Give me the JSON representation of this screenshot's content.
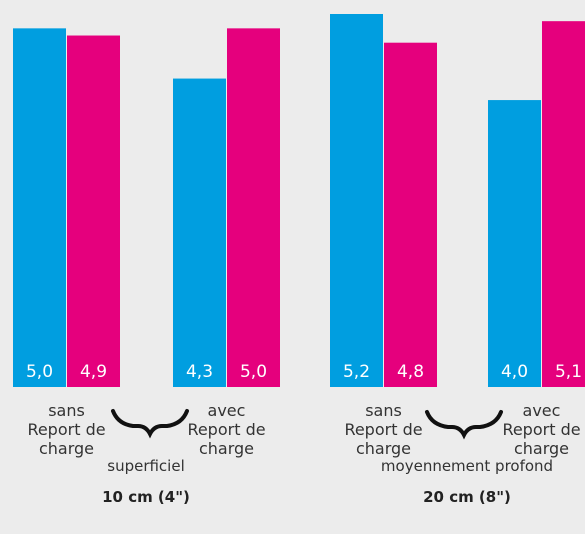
{
  "chart_data": {
    "type": "bar",
    "colors": {
      "sans": "#009ee0",
      "avec": "#e5007d"
    },
    "ylim": [
      0,
      5.2
    ],
    "clusters": [
      {
        "key": "c1",
        "label_lines": [
          "sans",
          "Report de",
          "charge"
        ],
        "values": [
          5.0,
          4.9
        ],
        "value_labels": [
          "5,0",
          "4,9"
        ]
      },
      {
        "key": "c2",
        "label_lines": [
          "avec",
          "Report de",
          "charge"
        ],
        "values": [
          4.3,
          5.0
        ],
        "value_labels": [
          "4,3",
          "5,0"
        ]
      },
      {
        "key": "c3",
        "label_lines": [
          "sans",
          "Report de",
          "charge"
        ],
        "values": [
          5.2,
          4.8
        ],
        "value_labels": [
          "5,2",
          "4,8"
        ]
      },
      {
        "key": "c4",
        "label_lines": [
          "avec",
          "Report de",
          "charge"
        ],
        "values": [
          4.0,
          5.1
        ],
        "value_labels": [
          "4,0",
          "5,1"
        ]
      }
    ],
    "groups": [
      {
        "key": "g1",
        "name": "superficiel",
        "depth": "10 cm (4\")"
      },
      {
        "key": "g2",
        "name": "moyennement profond",
        "depth": "20 cm (8\")"
      }
    ]
  }
}
